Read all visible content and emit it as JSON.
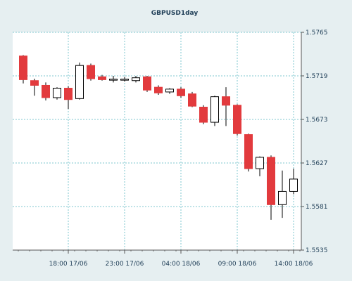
{
  "chart_data": {
    "type": "candlestick",
    "title": "GBPUSD1day",
    "ylim": [
      1.5535,
      1.5765
    ],
    "yticks": [
      "1.5765",
      "1.5719",
      "1.5673",
      "1.5627",
      "1.5581",
      "1.5535"
    ],
    "xticks": [
      "18:00 17/06",
      "23:00 17/06",
      "04:00 18/06",
      "09:00 18/06",
      "14:00 18/06"
    ],
    "grid": true,
    "colors": {
      "bull": "#ffffff",
      "bear": "#e23a3d",
      "outline": "#000000",
      "grid": "#7fc7cf",
      "plot_bg": "#ffffff",
      "page_bg": "#e6eff1",
      "text": "#1f3e57"
    },
    "candles": [
      {
        "open": 1.574,
        "high": 1.5741,
        "low": 1.5711,
        "close": 1.5715
      },
      {
        "open": 1.5714,
        "high": 1.5716,
        "low": 1.5698,
        "close": 1.5709
      },
      {
        "open": 1.5709,
        "high": 1.5712,
        "low": 1.5693,
        "close": 1.5696
      },
      {
        "open": 1.5696,
        "high": 1.5707,
        "low": 1.5694,
        "close": 1.5706
      },
      {
        "open": 1.5706,
        "high": 1.5708,
        "low": 1.5684,
        "close": 1.5694
      },
      {
        "open": 1.5695,
        "high": 1.5733,
        "low": 1.5694,
        "close": 1.573
      },
      {
        "open": 1.573,
        "high": 1.5732,
        "low": 1.5714,
        "close": 1.5716
      },
      {
        "open": 1.5718,
        "high": 1.572,
        "low": 1.5714,
        "close": 1.5715
      },
      {
        "open": 1.5715,
        "high": 1.5719,
        "low": 1.5712,
        "close": 1.5715
      },
      {
        "open": 1.5715,
        "high": 1.5718,
        "low": 1.5713,
        "close": 1.5715
      },
      {
        "open": 1.5714,
        "high": 1.5719,
        "low": 1.5712,
        "close": 1.5717
      },
      {
        "open": 1.5718,
        "high": 1.5719,
        "low": 1.5702,
        "close": 1.5704
      },
      {
        "open": 1.5707,
        "high": 1.5709,
        "low": 1.5699,
        "close": 1.5701
      },
      {
        "open": 1.5702,
        "high": 1.5706,
        "low": 1.57,
        "close": 1.5705
      },
      {
        "open": 1.5705,
        "high": 1.5707,
        "low": 1.5696,
        "close": 1.5698
      },
      {
        "open": 1.57,
        "high": 1.5702,
        "low": 1.5686,
        "close": 1.5687
      },
      {
        "open": 1.5686,
        "high": 1.5688,
        "low": 1.5668,
        "close": 1.567
      },
      {
        "open": 1.567,
        "high": 1.5698,
        "low": 1.5666,
        "close": 1.5697
      },
      {
        "open": 1.5697,
        "high": 1.5707,
        "low": 1.5666,
        "close": 1.5688
      },
      {
        "open": 1.5688,
        "high": 1.5689,
        "low": 1.5656,
        "close": 1.5658
      },
      {
        "open": 1.5657,
        "high": 1.5658,
        "low": 1.5618,
        "close": 1.5621
      },
      {
        "open": 1.5621,
        "high": 1.5634,
        "low": 1.5613,
        "close": 1.5633
      },
      {
        "open": 1.5633,
        "high": 1.5635,
        "low": 1.5567,
        "close": 1.5583
      },
      {
        "open": 1.5583,
        "high": 1.5619,
        "low": 1.5569,
        "close": 1.5597
      },
      {
        "open": 1.5597,
        "high": 1.5621,
        "low": 1.5594,
        "close": 1.561
      }
    ]
  }
}
